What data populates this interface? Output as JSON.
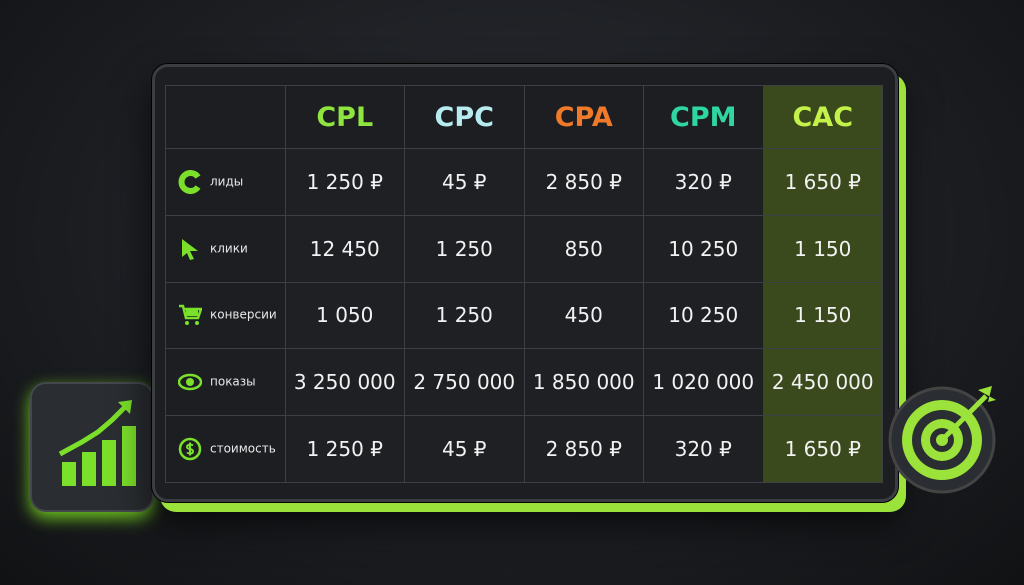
{
  "table": {
    "columns": [
      "CPL",
      "CPC",
      "CPA",
      "CPM",
      "CAC"
    ],
    "rows": [
      {
        "label": "лиды",
        "cells": [
          "1 250 ₽",
          "45 ₽",
          "2 850 ₽",
          "320 ₽",
          "1 650 ₽"
        ]
      },
      {
        "label": "клики",
        "cells": [
          "12 450",
          "1 250",
          "850",
          "10 250",
          "1 150"
        ]
      },
      {
        "label": "конверсии",
        "cells": [
          "1 050",
          "1 250",
          "450",
          "10 250",
          "1 150"
        ]
      },
      {
        "label": "показы",
        "cells": [
          "3 250 000",
          "2 750 000",
          "1 850 000",
          "1 020 000",
          "2 450 000"
        ]
      },
      {
        "label": "стоимость",
        "cells": [
          "1 250 ₽",
          "45 ₽",
          "2 850 ₽",
          "320 ₽",
          "1 650 ₽"
        ]
      }
    ]
  }
}
